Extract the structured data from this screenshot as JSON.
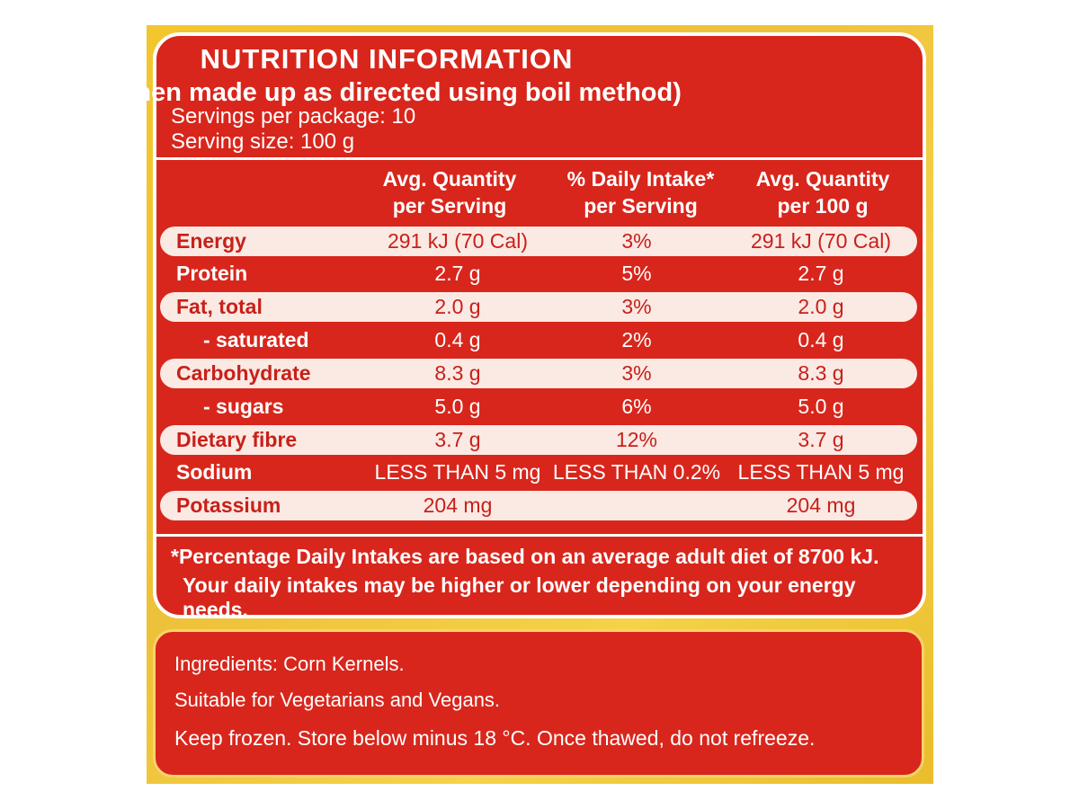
{
  "label": {
    "title": "NUTRITION INFORMATION",
    "subtitle": "(#when made up as directed using boil method)",
    "servings_per_package": "Servings per package: 10",
    "serving_size": "Serving size: 100 g"
  },
  "table": {
    "headers": [
      {
        "line1": "Avg. Quantity",
        "line2": "per Serving"
      },
      {
        "line1": "% Daily Intake*",
        "line2": "per Serving"
      },
      {
        "line1": "Avg. Quantity",
        "line2": "per 100 g"
      }
    ],
    "rows": [
      {
        "name": "Energy",
        "per_serving": "291 kJ (70 Cal)",
        "daily_intake": "3%",
        "per_100g": "291 kJ (70 Cal)"
      },
      {
        "name": "Protein",
        "per_serving": "2.7 g",
        "daily_intake": "5%",
        "per_100g": "2.7 g"
      },
      {
        "name": "Fat, total",
        "per_serving": "2.0 g",
        "daily_intake": "3%",
        "per_100g": "2.0 g"
      },
      {
        "name": "- saturated",
        "per_serving": "0.4 g",
        "daily_intake": "2%",
        "per_100g": "0.4 g"
      },
      {
        "name": "Carbohydrate",
        "per_serving": "8.3 g",
        "daily_intake": "3%",
        "per_100g": "8.3 g"
      },
      {
        "name": "- sugars",
        "per_serving": "5.0 g",
        "daily_intake": "6%",
        "per_100g": "5.0 g"
      },
      {
        "name": "Dietary fibre",
        "per_serving": "3.7 g",
        "daily_intake": "12%",
        "per_100g": "3.7 g"
      },
      {
        "name": "Sodium",
        "per_serving": "LESS THAN 5 mg",
        "daily_intake": "LESS THAN 0.2%",
        "per_100g": "LESS THAN 5 mg"
      },
      {
        "name": "Potassium",
        "per_serving": "204 mg",
        "daily_intake": "",
        "per_100g": "204 mg"
      }
    ]
  },
  "footnote": {
    "line1": "*Percentage Daily Intakes are based on an average adult diet of 8700 kJ.",
    "line2": "Your daily intakes may be higher or lower depending on your energy needs."
  },
  "info": {
    "ingredients": "Ingredients: Corn Kernels.",
    "suitable": "Suitable for Vegetarians and Vegans.",
    "storage": "Keep frozen. Store below minus 18 °C. Once thawed, do not refreeze."
  },
  "colors": {
    "panel_red": "#d8261c",
    "packaging_yellow": "#f3c630",
    "highlight_row": "#fbe9e3"
  }
}
